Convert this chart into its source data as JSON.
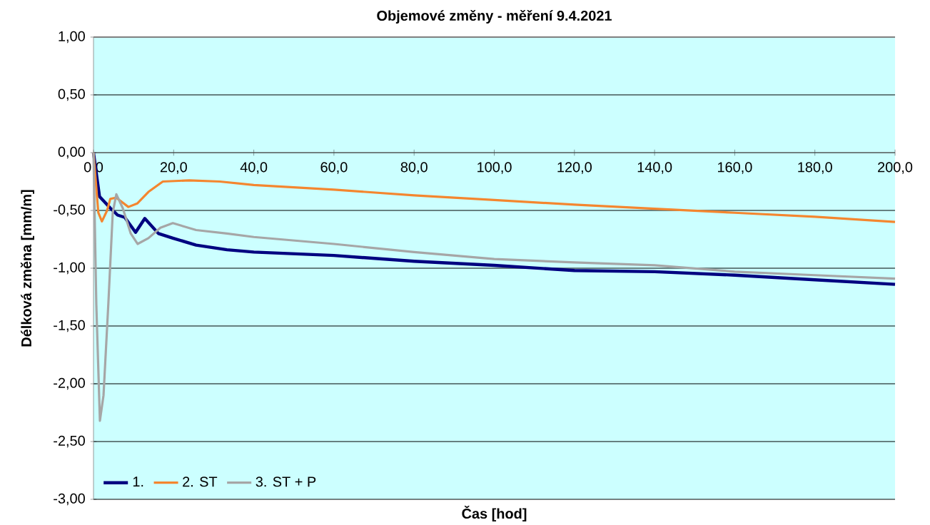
{
  "chart_data": {
    "type": "line",
    "title": "Objemové změny - měření 9.4.2021",
    "xlabel": "Čas [hod]",
    "ylabel": "Délková změna [mm/m]",
    "xlim": [
      0,
      200
    ],
    "ylim": [
      -3,
      1
    ],
    "xticks": [
      {
        "value": 0,
        "label": "0,0"
      },
      {
        "value": 20,
        "label": "20,0"
      },
      {
        "value": 40,
        "label": "40,0"
      },
      {
        "value": 60,
        "label": "60,0"
      },
      {
        "value": 80,
        "label": "80,0"
      },
      {
        "value": 100,
        "label": "100,0"
      },
      {
        "value": 120,
        "label": "120,0"
      },
      {
        "value": 140,
        "label": "140,0"
      },
      {
        "value": 160,
        "label": "160,0"
      },
      {
        "value": 180,
        "label": "180,0"
      },
      {
        "value": 200,
        "label": "200,0"
      }
    ],
    "yticks": [
      {
        "value": -3,
        "label": "-3,00"
      },
      {
        "value": -2.5,
        "label": "-2,50"
      },
      {
        "value": -2,
        "label": "-2,00"
      },
      {
        "value": -1.5,
        "label": "-1,50"
      },
      {
        "value": -1,
        "label": "-1,00"
      },
      {
        "value": -0.5,
        "label": "-0,50"
      },
      {
        "value": 0,
        "label": "0,00"
      },
      {
        "value": 0.5,
        "label": "0,50"
      },
      {
        "value": 1,
        "label": "1,00"
      }
    ],
    "grid": "y",
    "legend": "bottom left",
    "marker": "none",
    "line_style": "solid",
    "series": [
      {
        "name": "1.",
        "color": "#000080",
        "x": [
          0,
          1.5,
          4.2,
          6,
          7.8,
          10.5,
          12.8,
          16.2,
          19.8,
          25.6,
          33.3,
          40,
          60,
          80,
          100,
          120,
          140,
          160,
          180,
          200
        ],
        "values": [
          0,
          -0.38,
          -0.48,
          -0.54,
          -0.56,
          -0.69,
          -0.57,
          -0.7,
          -0.74,
          -0.8,
          -0.84,
          -0.86,
          -0.89,
          -0.94,
          -0.975,
          -1.02,
          -1.03,
          -1.06,
          -1.1,
          -1.14
        ]
      },
      {
        "name": "2. ST",
        "color": "#f4862f",
        "x": [
          0,
          1.2,
          2.1,
          3.4,
          4.2,
          5.7,
          8.7,
          10.9,
          13.7,
          17.3,
          23.9,
          31.5,
          40,
          60,
          80,
          100,
          120,
          140,
          160,
          180,
          200
        ],
        "values": [
          0,
          -0.52,
          -0.595,
          -0.5,
          -0.4,
          -0.39,
          -0.47,
          -0.44,
          -0.34,
          -0.25,
          -0.24,
          -0.25,
          -0.28,
          -0.32,
          -0.37,
          -0.41,
          -0.45,
          -0.485,
          -0.52,
          -0.555,
          -0.6
        ]
      },
      {
        "name": "3. ST + P",
        "color": "#a6a6a6",
        "x": [
          0,
          0.7,
          1.6,
          2.5,
          3.7,
          4.8,
          5.7,
          7.3,
          9.3,
          11,
          13.7,
          16.7,
          19.8,
          25.6,
          33.3,
          40,
          60,
          80,
          100,
          120,
          140,
          160,
          180,
          200
        ],
        "values": [
          0,
          -1.31,
          -2.32,
          -2.1,
          -1.31,
          -0.52,
          -0.36,
          -0.48,
          -0.7,
          -0.79,
          -0.74,
          -0.65,
          -0.61,
          -0.67,
          -0.7,
          -0.73,
          -0.79,
          -0.86,
          -0.92,
          -0.95,
          -0.975,
          -1.03,
          -1.06,
          -1.09
        ]
      }
    ]
  }
}
